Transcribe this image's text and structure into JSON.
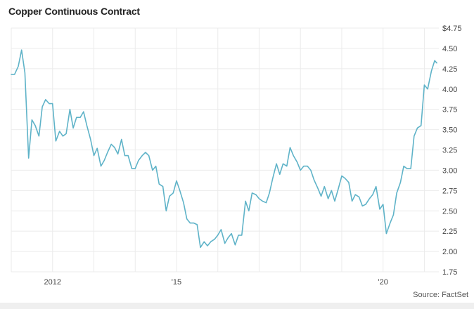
{
  "chart_data": {
    "type": "line",
    "title": "Copper Continuous Contract",
    "source": "Source: FactSet",
    "ylim": [
      1.75,
      4.75
    ],
    "yticks": [
      1.75,
      2.0,
      2.25,
      2.5,
      2.75,
      3.0,
      3.25,
      3.5,
      3.75,
      4.0,
      4.25,
      4.5,
      4.75
    ],
    "ytick_labels": [
      "1.75",
      "2.00",
      "2.25",
      "2.50",
      "2.75",
      "3.00",
      "3.25",
      "3.50",
      "3.75",
      "4.00",
      "4.25",
      "4.50",
      "$4.75"
    ],
    "xlim": [
      2011.0,
      2021.35
    ],
    "xticks": [
      2012,
      2015,
      2020
    ],
    "xtick_labels": [
      "2012",
      "'15",
      "'20"
    ],
    "grid": true,
    "line_color": "#5fb3c8",
    "series": [
      {
        "x": [
          2011.0,
          2011.08,
          2011.17,
          2011.25,
          2011.33,
          2011.42,
          2011.5,
          2011.58,
          2011.67,
          2011.75,
          2011.83,
          2011.92,
          2012.0,
          2012.08,
          2012.17,
          2012.25,
          2012.33,
          2012.42,
          2012.5,
          2012.58,
          2012.67,
          2012.75,
          2012.83,
          2012.92,
          2013.0,
          2013.08,
          2013.17,
          2013.25,
          2013.33,
          2013.42,
          2013.5,
          2013.58,
          2013.67,
          2013.75,
          2013.83,
          2013.92,
          2014.0,
          2014.08,
          2014.17,
          2014.25,
          2014.33,
          2014.42,
          2014.5,
          2014.58,
          2014.67,
          2014.75,
          2014.83,
          2014.92,
          2015.0,
          2015.08,
          2015.17,
          2015.25,
          2015.33,
          2015.42,
          2015.5,
          2015.58,
          2015.67,
          2015.75,
          2015.83,
          2015.92,
          2016.0,
          2016.08,
          2016.17,
          2016.25,
          2016.33,
          2016.42,
          2016.5,
          2016.58,
          2016.67,
          2016.75,
          2016.83,
          2016.92,
          2017.0,
          2017.08,
          2017.17,
          2017.25,
          2017.33,
          2017.42,
          2017.5,
          2017.58,
          2017.67,
          2017.75,
          2017.83,
          2017.92,
          2018.0,
          2018.08,
          2018.17,
          2018.25,
          2018.33,
          2018.42,
          2018.5,
          2018.58,
          2018.67,
          2018.75,
          2018.83,
          2018.92,
          2019.0,
          2019.08,
          2019.17,
          2019.25,
          2019.33,
          2019.42,
          2019.5,
          2019.58,
          2019.67,
          2019.75,
          2019.83,
          2019.92,
          2020.0,
          2020.08,
          2020.17,
          2020.25,
          2020.33,
          2020.42,
          2020.5,
          2020.58,
          2020.67,
          2020.75,
          2020.83,
          2020.92,
          2021.0,
          2021.08,
          2021.17,
          2021.25,
          2021.3
        ],
        "y": [
          4.18,
          4.18,
          4.28,
          4.48,
          4.2,
          3.15,
          3.62,
          3.55,
          3.42,
          3.78,
          3.87,
          3.82,
          3.82,
          3.36,
          3.48,
          3.42,
          3.45,
          3.75,
          3.52,
          3.65,
          3.65,
          3.72,
          3.55,
          3.38,
          3.18,
          3.27,
          3.05,
          3.12,
          3.22,
          3.32,
          3.28,
          3.2,
          3.38,
          3.18,
          3.18,
          3.02,
          3.02,
          3.12,
          3.18,
          3.22,
          3.18,
          3.0,
          3.05,
          2.83,
          2.8,
          2.5,
          2.68,
          2.72,
          2.87,
          2.75,
          2.6,
          2.4,
          2.35,
          2.35,
          2.33,
          2.05,
          2.12,
          2.07,
          2.12,
          2.15,
          2.2,
          2.27,
          2.1,
          2.17,
          2.22,
          2.08,
          2.2,
          2.2,
          2.62,
          2.5,
          2.72,
          2.7,
          2.65,
          2.62,
          2.6,
          2.72,
          2.9,
          3.08,
          2.95,
          3.08,
          3.05,
          3.28,
          3.18,
          3.1,
          3.0,
          3.05,
          3.05,
          3.0,
          2.88,
          2.78,
          2.68,
          2.8,
          2.65,
          2.75,
          2.62,
          2.78,
          2.93,
          2.9,
          2.85,
          2.62,
          2.7,
          2.67,
          2.56,
          2.58,
          2.65,
          2.7,
          2.8,
          2.52,
          2.58,
          2.22,
          2.35,
          2.45,
          2.72,
          2.85,
          3.05,
          3.02,
          3.02,
          3.42,
          3.52,
          3.55,
          4.05,
          4.0,
          4.22,
          4.35,
          4.32
        ]
      }
    ]
  }
}
